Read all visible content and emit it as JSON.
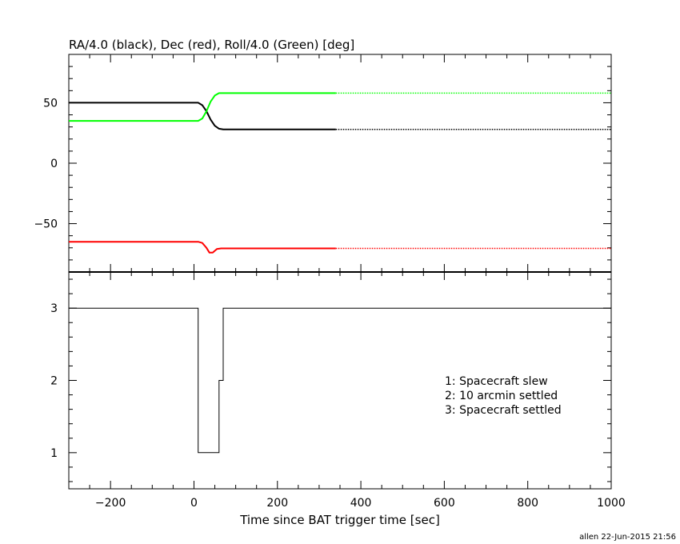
{
  "chart_data": [
    {
      "type": "line",
      "title": "RA/4.0 (black), Dec (red), Roll/4.0 (Green) [deg]",
      "xlim": [
        -300,
        1000
      ],
      "ylim": [
        -90,
        90
      ],
      "y_ticks": [
        -50,
        0,
        50
      ],
      "grid": false,
      "colors": {
        "ra": "#000000",
        "dec": "#ff0000",
        "roll": "#00ff00"
      },
      "series": [
        {
          "color_key": "ra",
          "x": [
            -300,
            10,
            20,
            30,
            40,
            50,
            60,
            70,
            340
          ],
          "y": [
            50,
            50,
            48,
            43,
            36,
            31,
            28.5,
            28,
            28
          ],
          "dotted_from_x": 340,
          "dotted_to_x": 1000,
          "dotted_y": 28
        },
        {
          "color_key": "dec",
          "x": [
            -300,
            10,
            20,
            30,
            37,
            45,
            55,
            65,
            340
          ],
          "y": [
            -65,
            -65,
            -66,
            -70,
            -74,
            -74,
            -71,
            -70.5,
            -70.5
          ],
          "dotted_from_x": 340,
          "dotted_to_x": 1000,
          "dotted_y": -70.5
        },
        {
          "color_key": "roll",
          "x": [
            -300,
            10,
            20,
            30,
            40,
            50,
            60,
            70,
            340
          ],
          "y": [
            35,
            35,
            37,
            43,
            51,
            56,
            58,
            58,
            58
          ],
          "dotted_from_x": 340,
          "dotted_to_x": 1000,
          "dotted_y": 58
        }
      ]
    },
    {
      "type": "line",
      "step": true,
      "xlabel": "Time since BAT trigger time [sec]",
      "xlim": [
        -300,
        1000
      ],
      "ylim": [
        0.5,
        3.5
      ],
      "x_ticks": [
        -200,
        0,
        200,
        400,
        600,
        800,
        1000
      ],
      "y_ticks": [
        1,
        2,
        3
      ],
      "grid": false,
      "series": [
        {
          "x": [
            -300,
            10,
            10,
            60,
            60,
            70,
            70,
            1000
          ],
          "y": [
            3,
            3,
            1,
            1,
            2,
            2,
            3,
            3
          ]
        }
      ],
      "annotations": [
        "1: Spacecraft slew",
        "2: 10 arcmin settled",
        "3: Spacecraft settled"
      ]
    }
  ],
  "footer": "allen 22-Jun-2015 21:56"
}
